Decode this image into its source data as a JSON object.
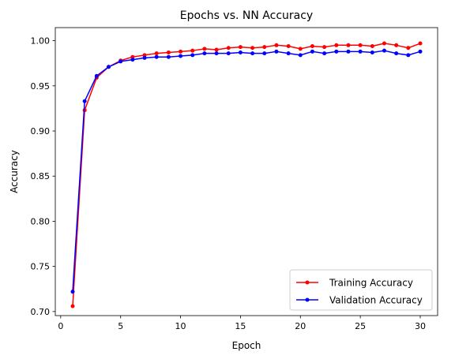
{
  "chart_data": {
    "type": "line",
    "title": "Epochs vs. NN Accuracy",
    "xlabel": "Epoch",
    "ylabel": "Accuracy",
    "xlim": [
      -0.45,
      31.45
    ],
    "ylim": [
      0.6955,
      1.0145
    ],
    "xticks": [
      0,
      5,
      10,
      15,
      20,
      25,
      30
    ],
    "yticks": [
      0.7,
      0.75,
      0.8,
      0.85,
      0.9,
      0.95,
      1.0
    ],
    "ytick_labels": [
      "0.70",
      "0.75",
      "0.80",
      "0.85",
      "0.90",
      "0.95",
      "1.00"
    ],
    "grid": false,
    "legend_position": "lower-right",
    "x": [
      1,
      2,
      3,
      4,
      5,
      6,
      7,
      8,
      9,
      10,
      11,
      12,
      13,
      14,
      15,
      16,
      17,
      18,
      19,
      20,
      21,
      22,
      23,
      24,
      25,
      26,
      27,
      28,
      29,
      30
    ],
    "series": [
      {
        "name": "Training Accuracy",
        "color": "#ff0000",
        "marker": "dot",
        "values": [
          0.706,
          0.923,
          0.959,
          0.971,
          0.978,
          0.982,
          0.984,
          0.986,
          0.987,
          0.988,
          0.989,
          0.991,
          0.99,
          0.992,
          0.993,
          0.992,
          0.993,
          0.995,
          0.994,
          0.991,
          0.994,
          0.993,
          0.995,
          0.995,
          0.995,
          0.994,
          0.997,
          0.995,
          0.992,
          0.997
        ]
      },
      {
        "name": "Validation Accuracy",
        "color": "#0000ff",
        "marker": "dot",
        "values": [
          0.722,
          0.933,
          0.961,
          0.971,
          0.977,
          0.979,
          0.981,
          0.982,
          0.982,
          0.983,
          0.984,
          0.986,
          0.986,
          0.986,
          0.987,
          0.986,
          0.986,
          0.988,
          0.986,
          0.984,
          0.988,
          0.986,
          0.988,
          0.988,
          0.988,
          0.987,
          0.989,
          0.986,
          0.984,
          0.988
        ]
      }
    ]
  }
}
